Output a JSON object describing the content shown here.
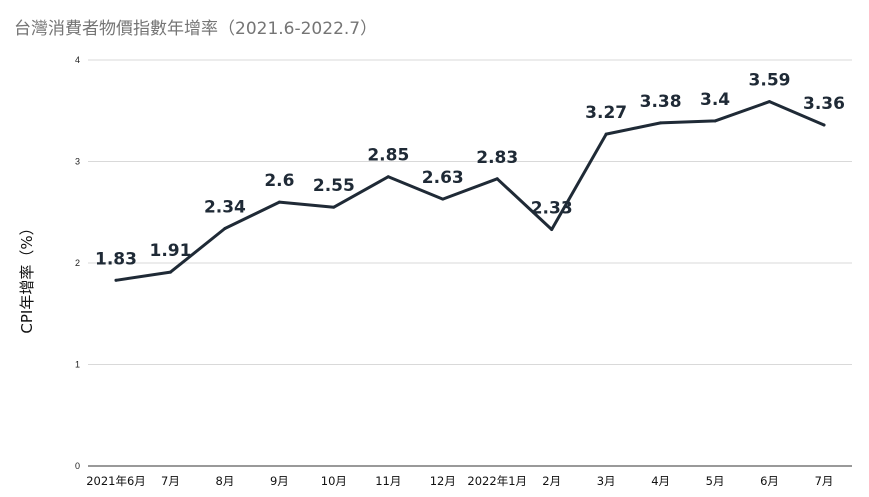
{
  "title": "台灣消費者物價指數年增率（2021.6-2022.7）",
  "chart_data": {
    "type": "line",
    "title": "台灣消費者物價指數年增率（2021.6-2022.7）",
    "ylabel": "CPI年增率（%）",
    "xlabel": "",
    "categories": [
      "2021年6月",
      "7月",
      "8月",
      "9月",
      "10月",
      "11月",
      "12月",
      "2022年1月",
      "2月",
      "3月",
      "4月",
      "5月",
      "6月",
      "7月"
    ],
    "series": [
      {
        "values": [
          1.83,
          1.91,
          2.34,
          2.6,
          2.55,
          2.85,
          2.63,
          2.83,
          2.33,
          3.27,
          3.38,
          3.4,
          3.59,
          3.36
        ]
      }
    ],
    "data_labels": [
      "1.83",
      "1.91",
      "2.34",
      "2.6",
      "2.55",
      "2.85",
      "2.63",
      "2.83",
      "2.33",
      "3.27",
      "3.38",
      "3.4",
      "3.59",
      "3.36"
    ],
    "yticks": [
      "0",
      "1",
      "2",
      "3",
      "4"
    ],
    "ylim": [
      0,
      4
    ],
    "grid": true,
    "legend": "none",
    "line_color": "#1f2a36",
    "grid_color": "#d9d9d9"
  }
}
